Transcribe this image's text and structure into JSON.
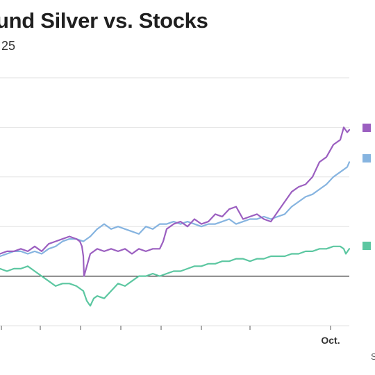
{
  "header": {
    "title": "und Silver vs. Stocks",
    "subtitle": "25"
  },
  "footer": {
    "source": "S"
  },
  "chart_data": {
    "type": "line",
    "title": "und Silver vs. Stocks",
    "subtitle": "25",
    "xlabel": "",
    "ylabel": "",
    "x_tick_labels": [
      "",
      "",
      "",
      "",
      "",
      "",
      "",
      "Oct."
    ],
    "grid": true,
    "legend": "right",
    "colors": {
      "purple": "#9b5fc0",
      "blue": "#86b4e0",
      "green": "#5cc7a1",
      "zero_line": "#222222",
      "grid": "#e2e2e2"
    },
    "y_levels": [
      -20,
      0,
      20,
      40,
      60,
      80
    ],
    "ylim": [
      -20,
      80
    ],
    "series": [
      {
        "color": "#9b5fc0",
        "x": [
          0,
          10,
          20,
          30,
          40,
          50,
          60,
          70,
          80,
          90,
          100,
          110,
          115,
          118,
          120,
          121,
          125,
          130,
          140,
          150,
          160,
          170,
          180,
          190,
          200,
          210,
          220,
          230,
          235,
          240,
          250,
          260,
          270,
          280,
          290,
          300,
          310,
          320,
          330,
          340,
          350,
          360,
          370,
          380,
          390,
          400,
          410,
          420,
          430,
          440,
          450,
          460,
          470,
          480,
          490,
          495,
          500,
          503
        ],
        "y": [
          9,
          10,
          10,
          11,
          10,
          12,
          10,
          13,
          14,
          15,
          16,
          15,
          14,
          12,
          8,
          0,
          4,
          9,
          11,
          10,
          11,
          10,
          11,
          9,
          11,
          10,
          11,
          11,
          14,
          19,
          21,
          22,
          20,
          23,
          21,
          22,
          25,
          24,
          27,
          28,
          23,
          24,
          25,
          23,
          22,
          26,
          30,
          34,
          36,
          37,
          40,
          46,
          48,
          53,
          55,
          60,
          58,
          59
        ]
      },
      {
        "color": "#86b4e0",
        "x": [
          0,
          10,
          20,
          30,
          40,
          50,
          60,
          70,
          80,
          90,
          100,
          110,
          120,
          130,
          140,
          150,
          160,
          170,
          180,
          190,
          200,
          210,
          220,
          230,
          240,
          250,
          260,
          270,
          280,
          290,
          300,
          310,
          320,
          330,
          340,
          350,
          360,
          370,
          380,
          390,
          400,
          410,
          420,
          430,
          440,
          450,
          460,
          470,
          480,
          490,
          500,
          503
        ],
        "y": [
          8,
          9,
          10,
          10,
          9,
          10,
          9,
          11,
          12,
          14,
          15,
          15,
          14,
          16,
          19,
          21,
          19,
          20,
          19,
          18,
          17,
          20,
          19,
          21,
          21,
          22,
          21,
          22,
          21,
          20,
          21,
          21,
          22,
          23,
          21,
          22,
          23,
          23,
          24,
          23,
          24,
          25,
          28,
          30,
          32,
          33,
          35,
          37,
          40,
          42,
          44,
          46
        ]
      },
      {
        "color": "#5cc7a1",
        "x": [
          0,
          10,
          20,
          30,
          40,
          50,
          60,
          70,
          80,
          90,
          100,
          110,
          120,
          125,
          130,
          135,
          140,
          150,
          160,
          170,
          180,
          190,
          200,
          210,
          220,
          230,
          240,
          250,
          260,
          270,
          280,
          290,
          300,
          310,
          320,
          330,
          340,
          350,
          360,
          370,
          380,
          390,
          400,
          410,
          420,
          430,
          440,
          450,
          460,
          470,
          480,
          490,
          495,
          498,
          503
        ],
        "y": [
          3,
          2,
          3,
          3,
          4,
          2,
          0,
          -2,
          -4,
          -3,
          -3,
          -4,
          -6,
          -10,
          -12,
          -9,
          -8,
          -9,
          -6,
          -3,
          -4,
          -2,
          0,
          0,
          1,
          0,
          1,
          2,
          2,
          3,
          4,
          4,
          5,
          5,
          6,
          6,
          7,
          7,
          6,
          7,
          7,
          8,
          8,
          8,
          9,
          9,
          10,
          10,
          11,
          11,
          12,
          12,
          11,
          9,
          11
        ]
      }
    ]
  }
}
